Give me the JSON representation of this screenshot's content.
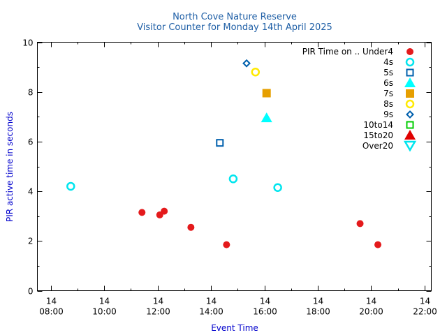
{
  "chart_data": {
    "type": "scatter",
    "title": "North Cove Nature Reserve",
    "subtitle": "Visitor Counter for Monday 14th April 2025",
    "xlabel": "Event Time",
    "ylabel": "PIR active time in seconds",
    "xlim": [
      "07:30",
      "22:15"
    ],
    "ylim": [
      0,
      10
    ],
    "x_ticks": [
      {
        "date": "14",
        "time": "08:00"
      },
      {
        "date": "14",
        "time": "10:00"
      },
      {
        "date": "14",
        "time": "12:00"
      },
      {
        "date": "14",
        "time": "14:00"
      },
      {
        "date": "14",
        "time": "16:00"
      },
      {
        "date": "14",
        "time": "18:00"
      },
      {
        "date": "14",
        "time": "20:00"
      },
      {
        "date": "14",
        "time": "22:00"
      }
    ],
    "y_ticks": [
      "0",
      "2",
      "4",
      "6",
      "8",
      "10"
    ],
    "legend_title": "PIR Time on ..",
    "legend_position": "top-right",
    "grid": false,
    "series": [
      {
        "name": "Under4",
        "marker": "circle-filled",
        "color": "#e41a1c",
        "points": [
          [
            "11:25",
            3.15
          ],
          [
            "12:05",
            3.05
          ],
          [
            "12:15",
            3.2
          ],
          [
            "13:15",
            2.55
          ],
          [
            "14:35",
            1.85
          ],
          [
            "19:35",
            2.7
          ],
          [
            "20:15",
            1.85
          ]
        ]
      },
      {
        "name": "4s",
        "marker": "circle-open",
        "color": "#00e5ee",
        "points": [
          [
            "08:45",
            4.2
          ],
          [
            "14:50",
            4.5
          ],
          [
            "16:30",
            4.15
          ]
        ]
      },
      {
        "name": "5s",
        "marker": "square-open",
        "color": "#0060ad",
        "points": [
          [
            "14:20",
            5.95
          ]
        ]
      },
      {
        "name": "6s",
        "marker": "triangle-up-filled",
        "color": "#00ffff",
        "points": [
          [
            "16:05",
            6.95
          ]
        ]
      },
      {
        "name": "7s",
        "marker": "square-filled",
        "color": "#e69f00",
        "points": [
          [
            "16:05",
            7.95
          ]
        ]
      },
      {
        "name": "8s",
        "marker": "circle-open",
        "color": "#ffea00",
        "points": [
          [
            "15:40",
            8.8
          ]
        ]
      },
      {
        "name": "9s",
        "marker": "diamond-open",
        "color": "#0060ad",
        "points": [
          [
            "15:20",
            9.15
          ]
        ]
      },
      {
        "name": "10to14",
        "marker": "square-open",
        "color": "#00cc00",
        "points": []
      },
      {
        "name": "15to20",
        "marker": "triangle-up-filled",
        "color": "#e00000",
        "points": []
      },
      {
        "name": "Over20",
        "marker": "triangle-down-open",
        "color": "#00e5ee",
        "points": []
      }
    ]
  }
}
